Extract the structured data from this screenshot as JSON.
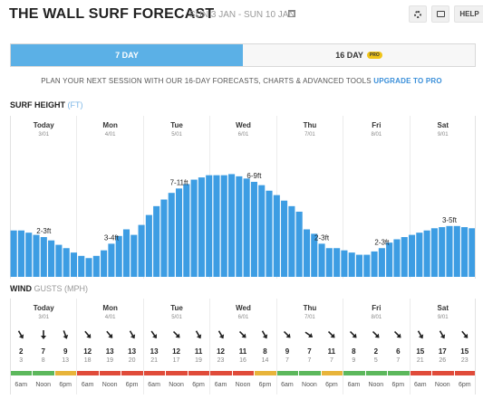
{
  "header": {
    "title": "THE WALL SURF FORECAST",
    "date_range": "SUN 3 JAN - SUN 10 JAN",
    "help_label": "HELP"
  },
  "tabs": {
    "seven_day": "7 DAY",
    "sixteen_day": "16 DAY",
    "pro_badge": "PRO"
  },
  "promo": {
    "text": "PLAN YOUR NEXT SESSION WITH OUR 16-DAY FORECASTS, CHARTS & ADVANCED TOOLS",
    "link": "UPGRADE TO PRO"
  },
  "surf": {
    "label": "SURF HEIGHT",
    "unit": "(FT)"
  },
  "wind": {
    "label": "WIND",
    "unit": "GUSTS (MPH)"
  },
  "days": [
    {
      "name": "Today",
      "date": "3/01"
    },
    {
      "name": "Mon",
      "date": "4/01"
    },
    {
      "name": "Tue",
      "date": "5/01"
    },
    {
      "name": "Wed",
      "date": "6/01"
    },
    {
      "name": "Thu",
      "date": "7/01"
    },
    {
      "name": "Fri",
      "date": "8/01"
    },
    {
      "name": "Sat",
      "date": "9/01"
    }
  ],
  "chart_data": {
    "type": "bar",
    "title": "SURF HEIGHT (FT)",
    "bar_color": "#3d9de3",
    "ylim": [
      0,
      12
    ],
    "values": [
      4.2,
      4.2,
      4.0,
      3.8,
      3.6,
      3.3,
      2.9,
      2.6,
      2.2,
      1.9,
      1.7,
      1.9,
      2.4,
      3.0,
      3.7,
      4.3,
      3.8,
      4.7,
      5.6,
      6.4,
      7.0,
      7.6,
      8.0,
      8.4,
      8.8,
      9.0,
      9.2,
      9.2,
      9.2,
      9.3,
      9.1,
      8.9,
      8.6,
      8.3,
      7.8,
      7.4,
      6.9,
      6.4,
      5.9,
      4.3,
      3.9,
      3.0,
      2.6,
      2.6,
      2.4,
      2.2,
      2.0,
      2.0,
      2.3,
      2.6,
      3.1,
      3.4,
      3.6,
      3.8,
      4.0,
      4.2,
      4.4,
      4.5,
      4.6,
      4.6,
      4.5,
      4.4
    ],
    "annotations": [
      {
        "label": "2-3ft",
        "bar": 4
      },
      {
        "label": "3-4ft",
        "bar": 13
      },
      {
        "label": "7-11ft",
        "bar": 22
      },
      {
        "label": "6-9ft",
        "bar": 32
      },
      {
        "label": "2-3ft",
        "bar": 41
      },
      {
        "label": "2-3ft",
        "bar": 49
      },
      {
        "label": "3-5ft",
        "bar": 58
      }
    ]
  },
  "wind_data": [
    {
      "day": 0,
      "slot": 0,
      "dir": 150,
      "speed": "2",
      "gust": "3",
      "color": "#5cb85c"
    },
    {
      "day": 0,
      "slot": 1,
      "dir": 180,
      "speed": "7",
      "gust": "8",
      "color": "#5cb85c"
    },
    {
      "day": 0,
      "slot": 2,
      "dir": 160,
      "speed": "9",
      "gust": "13",
      "color": "#e8b43a"
    },
    {
      "day": 1,
      "slot": 0,
      "dir": 140,
      "speed": "12",
      "gust": "18",
      "color": "#e04b3a"
    },
    {
      "day": 1,
      "slot": 1,
      "dir": 140,
      "speed": "13",
      "gust": "19",
      "color": "#e04b3a"
    },
    {
      "day": 1,
      "slot": 2,
      "dir": 150,
      "speed": "13",
      "gust": "20",
      "color": "#e04b3a"
    },
    {
      "day": 2,
      "slot": 0,
      "dir": 145,
      "speed": "13",
      "gust": "21",
      "color": "#e04b3a"
    },
    {
      "day": 2,
      "slot": 1,
      "dir": 135,
      "speed": "12",
      "gust": "17",
      "color": "#e04b3a"
    },
    {
      "day": 2,
      "slot": 2,
      "dir": 150,
      "speed": "11",
      "gust": "19",
      "color": "#e04b3a"
    },
    {
      "day": 3,
      "slot": 0,
      "dir": 150,
      "speed": "12",
      "gust": "23",
      "color": "#e04b3a"
    },
    {
      "day": 3,
      "slot": 1,
      "dir": 135,
      "speed": "11",
      "gust": "16",
      "color": "#e04b3a"
    },
    {
      "day": 3,
      "slot": 2,
      "dir": 150,
      "speed": "8",
      "gust": "14",
      "color": "#e8b43a"
    },
    {
      "day": 4,
      "slot": 0,
      "dir": 135,
      "speed": "9",
      "gust": "7",
      "color": "#5cb85c"
    },
    {
      "day": 4,
      "slot": 1,
      "dir": 125,
      "speed": "7",
      "gust": "7",
      "color": "#5cb85c"
    },
    {
      "day": 4,
      "slot": 2,
      "dir": 135,
      "speed": "11",
      "gust": "7",
      "color": "#e8b43a"
    },
    {
      "day": 5,
      "slot": 0,
      "dir": 135,
      "speed": "8",
      "gust": "9",
      "color": "#5cb85c"
    },
    {
      "day": 5,
      "slot": 1,
      "dir": 135,
      "speed": "2",
      "gust": "5",
      "color": "#5cb85c"
    },
    {
      "day": 5,
      "slot": 2,
      "dir": 135,
      "speed": "6",
      "gust": "7",
      "color": "#5cb85c"
    },
    {
      "day": 6,
      "slot": 0,
      "dir": 150,
      "speed": "15",
      "gust": "21",
      "color": "#e04b3a"
    },
    {
      "day": 6,
      "slot": 1,
      "dir": 150,
      "speed": "17",
      "gust": "26",
      "color": "#e04b3a"
    },
    {
      "day": 6,
      "slot": 2,
      "dir": 140,
      "speed": "15",
      "gust": "23",
      "color": "#e04b3a"
    }
  ],
  "wind_times": [
    "6am",
    "Noon",
    "6pm"
  ]
}
